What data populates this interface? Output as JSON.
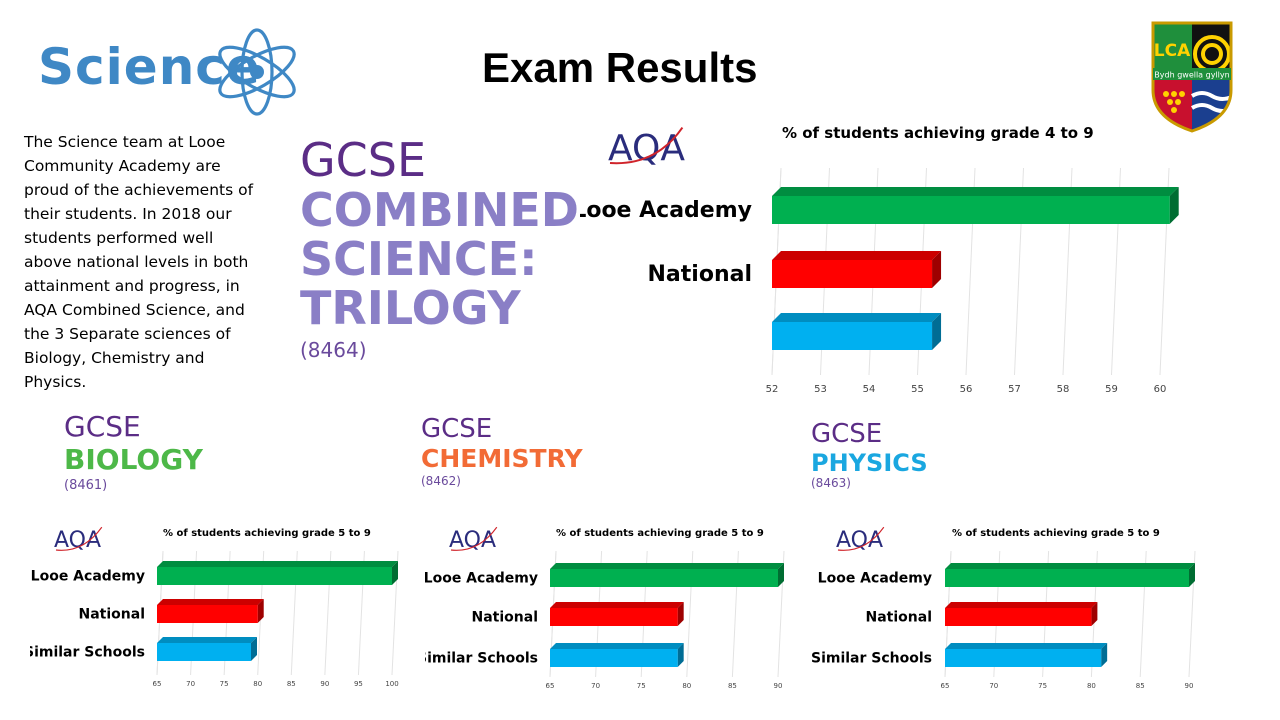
{
  "header": {
    "logo_word": "Science",
    "title": "Exam Results"
  },
  "crest": {
    "letters": "LCA",
    "motto": "Bydh gwella gyllyn"
  },
  "intro": "The Science team at Looe Community Academy are proud of the achievements of their students. In 2018 our students performed well above national levels in both attainment and progress, in AQA Combined Science, and the 3 Separate sciences of Biology, Chemistry and Physics.",
  "combined": {
    "gcse": "GCSE",
    "lines": [
      "COMBINED",
      "SCIENCE:",
      "TRILOGY"
    ],
    "code": "(8464)"
  },
  "biology": {
    "gcse": "GCSE",
    "name": "BIOLOGY",
    "code": "(8461)"
  },
  "chemistry": {
    "gcse": "GCSE",
    "name": "CHEMISTRY",
    "code": "(8462)"
  },
  "physics": {
    "gcse": "GCSE",
    "name": "PHYSICS",
    "code": "(8463)"
  },
  "aqa_logo_text": "AQA",
  "colors": {
    "green": "#00b050",
    "red": "#ff0000",
    "blue": "#00b0f0",
    "science_blue": "#3f88c5",
    "purple": "#5b2d86"
  },
  "chart_data": [
    {
      "type": "bar",
      "orientation": "horizontal",
      "title": "% of students achieving grade 4 to 9",
      "categories": [
        "Looe Academy",
        "National",
        ""
      ],
      "values": [
        60.2,
        55.3,
        55.3
      ],
      "colors": [
        "#00b050",
        "#ff0000",
        "#00b0f0"
      ],
      "xlim": [
        52,
        60
      ],
      "ticks": [
        52,
        53,
        54,
        55,
        56,
        57,
        58,
        59,
        60
      ]
    },
    {
      "type": "bar",
      "orientation": "horizontal",
      "title": "% of students achieving grade 5 to 9",
      "categories": [
        "Looe Academy",
        "National",
        "Similar Schools"
      ],
      "values": [
        100,
        80,
        79
      ],
      "colors": [
        "#00b050",
        "#ff0000",
        "#00b0f0"
      ],
      "xlim": [
        65,
        100
      ],
      "ticks": [
        65,
        70,
        75,
        80,
        85,
        90,
        95,
        100
      ]
    },
    {
      "type": "bar",
      "orientation": "horizontal",
      "title": "% of students achieving grade 5 to 9",
      "categories": [
        "Looe Academy",
        "National",
        "Similar Schools"
      ],
      "values": [
        90,
        79,
        79
      ],
      "colors": [
        "#00b050",
        "#ff0000",
        "#00b0f0"
      ],
      "xlim": [
        65,
        90
      ],
      "ticks": [
        65,
        70,
        75,
        80,
        85,
        90
      ]
    },
    {
      "type": "bar",
      "orientation": "horizontal",
      "title": "% of students achieving grade 5 to 9",
      "categories": [
        "Looe Academy",
        "National",
        "Similar Schools"
      ],
      "values": [
        90,
        80,
        81
      ],
      "colors": [
        "#00b050",
        "#ff0000",
        "#00b0f0"
      ],
      "xlim": [
        65,
        90
      ],
      "ticks": [
        65,
        70,
        75,
        80,
        85,
        90
      ]
    }
  ]
}
